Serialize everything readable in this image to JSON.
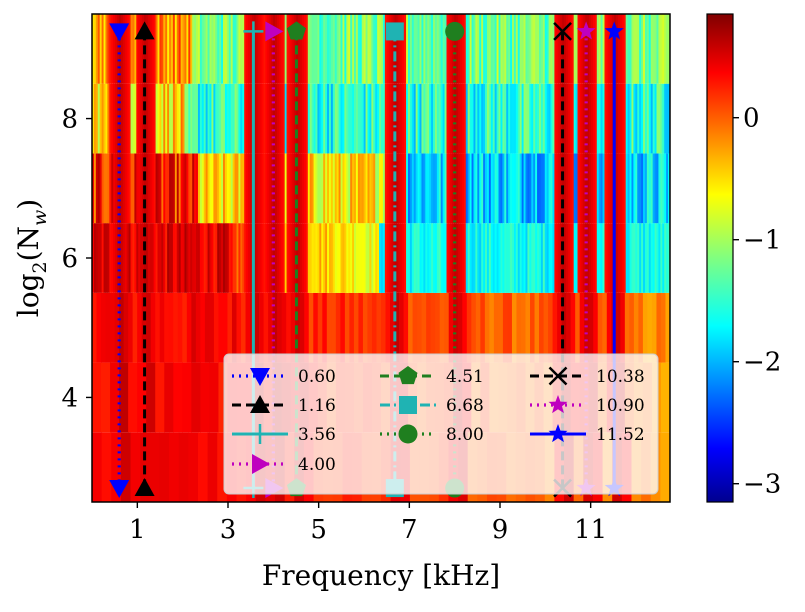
{
  "chart_data": {
    "type": "heatmap",
    "xlabel": "Frequency [kHz]",
    "ylabel_prefix": "log",
    "ylabel_sub": "2",
    "ylabel_suffix": "(N",
    "ylabel_var_sub": "w",
    "ylabel_close": ")",
    "xlim": [
      0,
      12.75
    ],
    "ylim": [
      2.5,
      9.5
    ],
    "x_ticks": [
      1,
      3,
      5,
      7,
      9,
      11
    ],
    "x_tick_labels": [
      "1",
      "3",
      "5",
      "7",
      "9",
      "11"
    ],
    "y_ticks": [
      4,
      6,
      8
    ],
    "y_tick_labels": [
      "4",
      "6",
      "8"
    ],
    "colorbar": {
      "colormap": "jet",
      "range": [
        -3.15,
        0.85
      ],
      "ticks": [
        0,
        -1,
        -2,
        -3
      ],
      "tick_labels": [
        "0",
        "−1",
        "−2",
        "−3"
      ]
    },
    "heatmap_rows_log2Nw": [
      3,
      4,
      5,
      6,
      7,
      8,
      9
    ],
    "markers_y_range": [
      2.7,
      9.25
    ],
    "series": [
      {
        "name": "0.60",
        "x": 0.6,
        "color": "#0000ff",
        "linestyle": "dotted",
        "marker": "triangle-down"
      },
      {
        "name": "1.16",
        "x": 1.16,
        "color": "#000000",
        "linestyle": "dashed",
        "marker": "triangle-up"
      },
      {
        "name": "3.56",
        "x": 3.56,
        "color": "#1fb3b3",
        "linestyle": "solid",
        "marker": "plus"
      },
      {
        "name": "4.00",
        "x": 4.0,
        "color": "#bf00bf",
        "linestyle": "dotted",
        "marker": "triangle-right"
      },
      {
        "name": "4.51",
        "x": 4.51,
        "color": "#1f7f1f",
        "linestyle": "dashed",
        "marker": "pentagon"
      },
      {
        "name": "6.68",
        "x": 6.68,
        "color": "#1fb3b3",
        "linestyle": "dashdot",
        "marker": "square"
      },
      {
        "name": "8.00",
        "x": 8.0,
        "color": "#1f7f1f",
        "linestyle": "dotted",
        "marker": "circle"
      },
      {
        "name": "10.38",
        "x": 10.38,
        "color": "#000000",
        "linestyle": "dashed",
        "marker": "x"
      },
      {
        "name": "10.90",
        "x": 10.9,
        "color": "#bf00bf",
        "linestyle": "dotted",
        "marker": "star"
      },
      {
        "name": "11.52",
        "x": 11.52,
        "color": "#0000ff",
        "linestyle": "solid",
        "marker": "star"
      }
    ],
    "legend_location": "lower-right"
  }
}
